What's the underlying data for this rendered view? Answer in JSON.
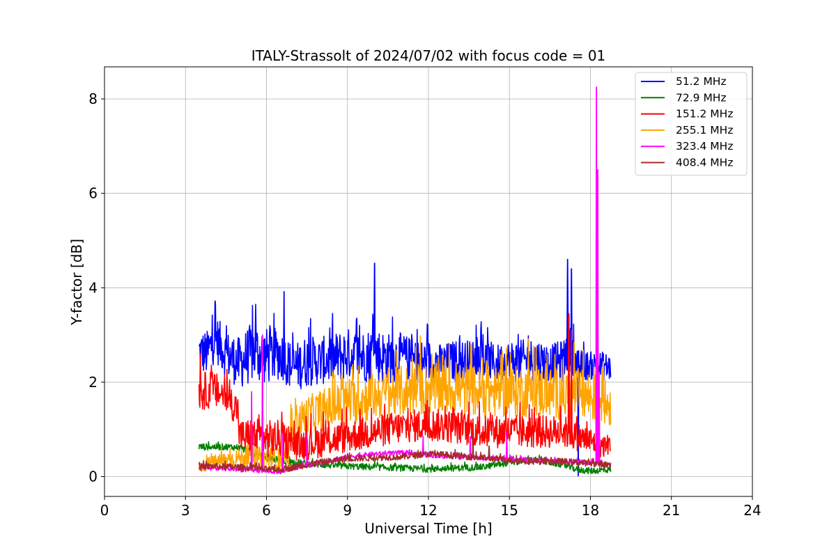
{
  "chart_data": {
    "type": "line",
    "title": "ITALY-Strassolt of 2024/07/02 with focus code = 01",
    "xlabel": "Universal Time [h]",
    "ylabel": "Y-factor [dB]",
    "xlim": [
      0,
      24
    ],
    "ylim": [
      -0.42,
      8.68
    ],
    "xticks": [
      0,
      3,
      6,
      9,
      12,
      15,
      18,
      21,
      24
    ],
    "yticks": [
      0,
      2,
      4,
      6,
      8
    ],
    "grid": true,
    "legend_position": "top-right",
    "series": [
      {
        "name": " 51.2 MHz",
        "color": "#0000ff",
        "x": [
          3.5,
          3.8,
          4.1,
          4.5,
          5.0,
          5.5,
          6.0,
          6.5,
          7.0,
          7.5,
          8.0,
          8.5,
          9.0,
          9.5,
          10.0,
          10.5,
          11.0,
          11.5,
          12.0,
          12.5,
          13.0,
          13.5,
          14.0,
          14.5,
          15.0,
          15.5,
          16.0,
          16.5,
          17.0,
          17.2,
          17.5,
          18.0,
          18.5,
          18.75
        ],
        "mean": [
          2.65,
          2.6,
          2.95,
          2.6,
          2.4,
          2.65,
          2.55,
          2.6,
          2.3,
          2.45,
          2.45,
          2.5,
          2.6,
          2.55,
          2.6,
          2.5,
          2.55,
          2.45,
          2.45,
          2.4,
          2.45,
          2.45,
          2.5,
          2.4,
          2.45,
          2.45,
          2.5,
          2.4,
          2.45,
          2.8,
          2.35,
          2.35,
          2.35,
          2.3
        ],
        "amp": [
          0.45,
          0.5,
          0.5,
          0.5,
          0.55,
          0.65,
          0.6,
          0.55,
          0.5,
          0.55,
          0.5,
          0.55,
          0.55,
          0.55,
          0.6,
          0.55,
          0.5,
          0.45,
          0.45,
          0.4,
          0.45,
          0.45,
          0.45,
          0.4,
          0.45,
          0.45,
          0.45,
          0.4,
          0.45,
          0.5,
          0.35,
          0.3,
          0.3,
          0.3
        ],
        "spikes": [
          [
            4.1,
            3.72
          ],
          [
            5.6,
            3.65
          ],
          [
            6.65,
            3.92
          ],
          [
            10.0,
            4.52
          ],
          [
            17.15,
            4.6
          ],
          [
            17.3,
            4.4
          ],
          [
            17.55,
            0.02
          ]
        ]
      },
      {
        "name": " 72.9 MHz",
        "color": "#008000",
        "x": [
          3.5,
          4.0,
          4.5,
          4.95,
          5.5,
          6.0,
          6.5,
          7.0,
          8.0,
          9.0,
          10.0,
          11.0,
          12.0,
          13.0,
          14.0,
          15.0,
          16.0,
          17.0,
          17.5,
          18.0,
          18.75
        ],
        "mean": [
          0.63,
          0.63,
          0.63,
          0.62,
          0.5,
          0.4,
          0.35,
          0.3,
          0.25,
          0.22,
          0.2,
          0.18,
          0.16,
          0.18,
          0.2,
          0.3,
          0.35,
          0.25,
          0.15,
          0.12,
          0.15
        ],
        "amp": [
          0.07,
          0.07,
          0.07,
          0.07,
          0.08,
          0.08,
          0.08,
          0.08,
          0.07,
          0.07,
          0.07,
          0.07,
          0.07,
          0.07,
          0.07,
          0.07,
          0.07,
          0.07,
          0.07,
          0.07,
          0.07
        ],
        "spikes": []
      },
      {
        "name": "151.2 MHz",
        "color": "#ff0000",
        "x": [
          3.5,
          4.0,
          4.5,
          4.95,
          5.0,
          5.5,
          6.0,
          6.5,
          7.0,
          7.5,
          8.0,
          9.0,
          10.0,
          11.0,
          12.0,
          13.0,
          14.0,
          15.0,
          16.0,
          17.0,
          17.5,
          18.0,
          18.5,
          18.75
        ],
        "mean": [
          1.8,
          1.85,
          1.7,
          1.4,
          0.85,
          0.85,
          0.8,
          0.8,
          0.65,
          0.7,
          0.75,
          0.85,
          0.95,
          1.05,
          1.1,
          1.05,
          0.95,
          0.95,
          0.95,
          0.95,
          0.85,
          0.75,
          0.65,
          0.7
        ],
        "amp": [
          0.4,
          0.4,
          0.35,
          0.35,
          0.35,
          0.4,
          0.4,
          0.4,
          0.3,
          0.35,
          0.35,
          0.35,
          0.35,
          0.35,
          0.35,
          0.35,
          0.35,
          0.35,
          0.35,
          0.35,
          0.3,
          0.3,
          0.25,
          0.2
        ],
        "spikes": [
          [
            3.55,
            2.6
          ],
          [
            17.2,
            3.45
          ],
          [
            17.3,
            3.1
          ]
        ]
      },
      {
        "name": "255.1 MHz",
        "color": "#ffa500",
        "x": [
          3.5,
          4.0,
          5.0,
          6.0,
          6.85,
          6.9,
          7.5,
          8.0,
          9.0,
          10.0,
          11.0,
          12.0,
          13.0,
          14.0,
          15.0,
          16.0,
          17.0,
          17.5,
          18.0,
          18.5,
          18.75
        ],
        "mean": [
          0.2,
          0.3,
          0.4,
          0.4,
          0.3,
          1.1,
          1.3,
          1.4,
          1.55,
          1.7,
          1.8,
          1.85,
          1.85,
          1.8,
          1.8,
          1.8,
          1.75,
          1.75,
          1.7,
          1.6,
          1.5
        ],
        "amp": [
          0.12,
          0.15,
          0.2,
          0.25,
          0.25,
          0.35,
          0.4,
          0.45,
          0.5,
          0.5,
          0.55,
          0.55,
          0.55,
          0.55,
          0.55,
          0.55,
          0.55,
          0.55,
          0.55,
          0.5,
          0.45
        ],
        "spikes": [
          [
            11.7,
            2.98
          ],
          [
            15.7,
            2.92
          ],
          [
            17.4,
            2.85
          ]
        ]
      },
      {
        "name": "323.4 MHz",
        "color": "#ff00ff",
        "x": [
          3.5,
          4.0,
          5.0,
          6.0,
          6.5,
          7.0,
          8.0,
          9.0,
          10.0,
          11.0,
          12.0,
          13.0,
          14.0,
          15.0,
          16.0,
          17.0,
          18.0,
          18.75
        ],
        "mean": [
          0.2,
          0.18,
          0.15,
          0.12,
          0.1,
          0.18,
          0.3,
          0.42,
          0.48,
          0.5,
          0.45,
          0.42,
          0.38,
          0.38,
          0.35,
          0.32,
          0.3,
          0.25
        ],
        "amp": [
          0.05,
          0.05,
          0.05,
          0.05,
          0.05,
          0.05,
          0.05,
          0.05,
          0.05,
          0.05,
          0.05,
          0.05,
          0.05,
          0.05,
          0.05,
          0.05,
          0.05,
          0.05
        ],
        "spikes": [
          [
            5.45,
            1.8
          ],
          [
            5.85,
            3.0
          ],
          [
            6.6,
            0.9
          ],
          [
            7.5,
            0.9
          ],
          [
            11.8,
            0.85
          ],
          [
            13.55,
            0.85
          ],
          [
            14.9,
            0.95
          ],
          [
            18.22,
            8.25
          ],
          [
            18.27,
            6.5
          ],
          [
            18.32,
            2.2
          ]
        ]
      },
      {
        "name": "408.4 MHz",
        "color": "#a52a2a",
        "x": [
          3.5,
          4.0,
          5.0,
          6.0,
          6.5,
          7.0,
          8.0,
          9.0,
          10.0,
          11.0,
          12.0,
          13.0,
          14.0,
          15.0,
          16.0,
          17.0,
          18.0,
          18.75
        ],
        "mean": [
          0.2,
          0.22,
          0.2,
          0.15,
          0.14,
          0.2,
          0.3,
          0.38,
          0.4,
          0.42,
          0.48,
          0.45,
          0.4,
          0.35,
          0.32,
          0.32,
          0.28,
          0.25
        ],
        "amp": [
          0.07,
          0.07,
          0.07,
          0.07,
          0.07,
          0.07,
          0.07,
          0.07,
          0.07,
          0.07,
          0.07,
          0.07,
          0.07,
          0.07,
          0.07,
          0.07,
          0.07,
          0.07
        ],
        "spikes": [
          [
            13.65,
            0.9
          ],
          [
            14.25,
            0.65
          ]
        ]
      }
    ]
  }
}
